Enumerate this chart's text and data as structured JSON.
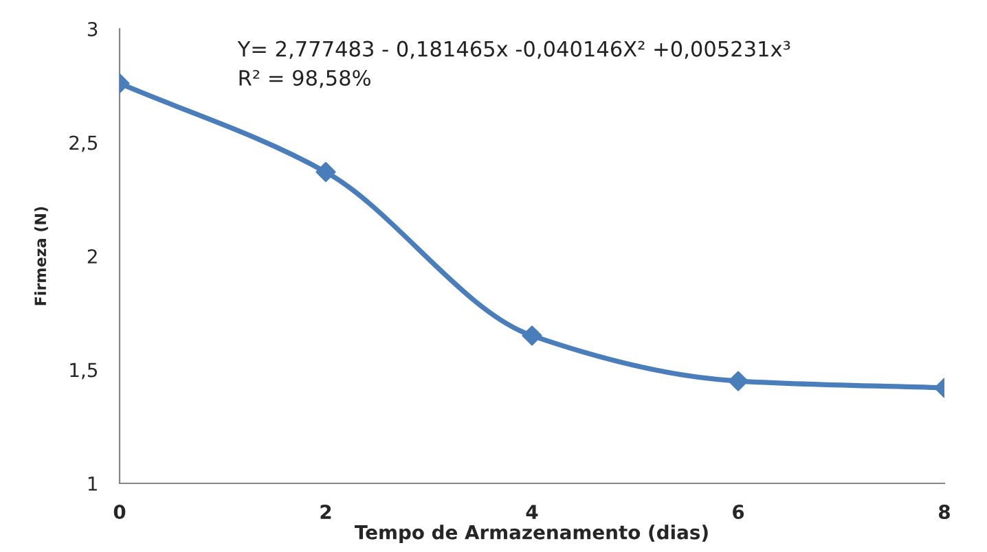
{
  "chart_data": {
    "type": "line",
    "xlabel": "Tempo de Armazenamento (dias)",
    "ylabel": "Firmeza (N)",
    "annotations": [
      "Y= 2,777483 - 0,181465x -0,040146X² +0,005231x³",
      "R² = 98,58%"
    ],
    "x": [
      0,
      2,
      4,
      6,
      8
    ],
    "series": [
      {
        "color": "#4a7ebb",
        "values": [
          2.76,
          2.37,
          1.65,
          1.45,
          1.42
        ]
      }
    ],
    "xlim": [
      0,
      8
    ],
    "xticks": [
      0,
      2,
      4,
      6,
      8
    ],
    "ylim": [
      1,
      3
    ],
    "yticks": [
      1,
      {
        "value": 1.5,
        "label": "1,5"
      },
      2,
      {
        "value": 2.5,
        "label": "2,5"
      },
      3
    ],
    "grid": false,
    "marker": "diamond",
    "line_style": "solid"
  }
}
